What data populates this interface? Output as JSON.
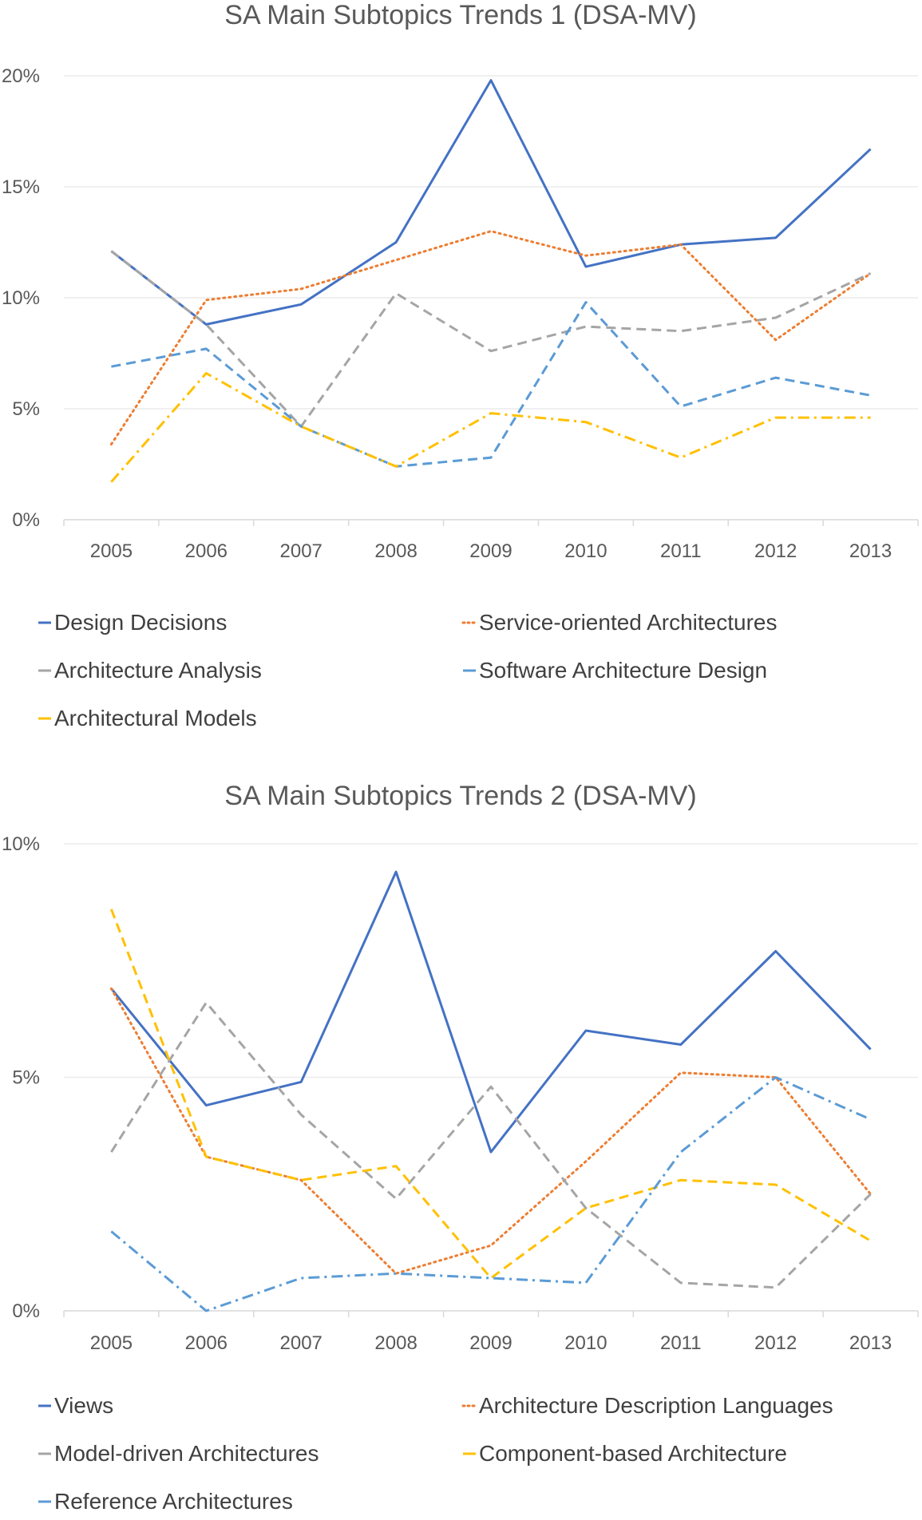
{
  "chart_data": [
    {
      "type": "line",
      "title": "SA  Main Subtopics Trends 1 (DSA-MV)",
      "xlabel": "",
      "ylabel": "",
      "categories": [
        "2005",
        "2006",
        "2007",
        "2008",
        "2009",
        "2010",
        "2011",
        "2012",
        "2013"
      ],
      "ylim": [
        0,
        20
      ],
      "yticks": [
        "0%",
        "5%",
        "10%",
        "15%",
        "20%"
      ],
      "grid": true,
      "legend_position": "bottom",
      "series": [
        {
          "name": "Design Decisions",
          "values": [
            12.1,
            8.8,
            9.7,
            12.5,
            19.8,
            11.4,
            12.4,
            12.7,
            16.7
          ],
          "color": "#4472C4",
          "dash": "solid"
        },
        {
          "name": "Service-oriented Architectures",
          "values": [
            3.4,
            9.9,
            10.4,
            11.7,
            13.0,
            11.9,
            12.4,
            8.1,
            11.1
          ],
          "color": "#ED7D31",
          "dash": "dot"
        },
        {
          "name": "Architecture Analysis",
          "values": [
            12.1,
            8.8,
            4.2,
            10.2,
            7.6,
            8.7,
            8.5,
            9.1,
            11.1
          ],
          "color": "#A5A5A5",
          "dash": "dash"
        },
        {
          "name": "Software Architecture Design",
          "values": [
            6.9,
            7.7,
            4.2,
            2.4,
            2.8,
            9.8,
            5.1,
            6.4,
            5.6
          ],
          "color": "#5B9BD5",
          "dash": "dash"
        },
        {
          "name": "Architectural Models",
          "values": [
            1.7,
            6.6,
            4.2,
            2.4,
            4.8,
            4.4,
            2.8,
            4.6,
            4.6
          ],
          "color": "#FFC000",
          "dash": "dashdot"
        }
      ]
    },
    {
      "type": "line",
      "title": "SA  Main Subtopics Trends 2 (DSA-MV)",
      "xlabel": "",
      "ylabel": "",
      "categories": [
        "2005",
        "2006",
        "2007",
        "2008",
        "2009",
        "2010",
        "2011",
        "2012",
        "2013"
      ],
      "ylim": [
        0,
        10
      ],
      "yticks": [
        "0%",
        "5%",
        "10%"
      ],
      "grid": true,
      "legend_position": "bottom",
      "series": [
        {
          "name": "Views",
          "values": [
            6.9,
            4.4,
            4.9,
            9.4,
            3.4,
            6.0,
            5.7,
            7.7,
            5.6
          ],
          "color": "#4472C4",
          "dash": "solid"
        },
        {
          "name": "Architecture Description Languages",
          "values": [
            6.9,
            3.3,
            2.8,
            0.8,
            1.4,
            3.2,
            5.1,
            5.0,
            2.5
          ],
          "color": "#ED7D31",
          "dash": "dot"
        },
        {
          "name": "Model-driven Architectures",
          "values": [
            3.4,
            6.6,
            4.2,
            2.4,
            4.8,
            2.2,
            0.6,
            0.5,
            2.5
          ],
          "color": "#A5A5A5",
          "dash": "dash"
        },
        {
          "name": "Component-based Architecture",
          "values": [
            8.6,
            3.3,
            2.8,
            3.1,
            0.7,
            2.2,
            2.8,
            2.7,
            1.5
          ],
          "color": "#FFC000",
          "dash": "dash"
        },
        {
          "name": "Reference Architectures",
          "values": [
            1.7,
            0.0,
            0.7,
            0.8,
            0.7,
            0.6,
            3.4,
            5.0,
            4.1
          ],
          "color": "#5B9BD5",
          "dash": "dashdot"
        }
      ]
    }
  ]
}
